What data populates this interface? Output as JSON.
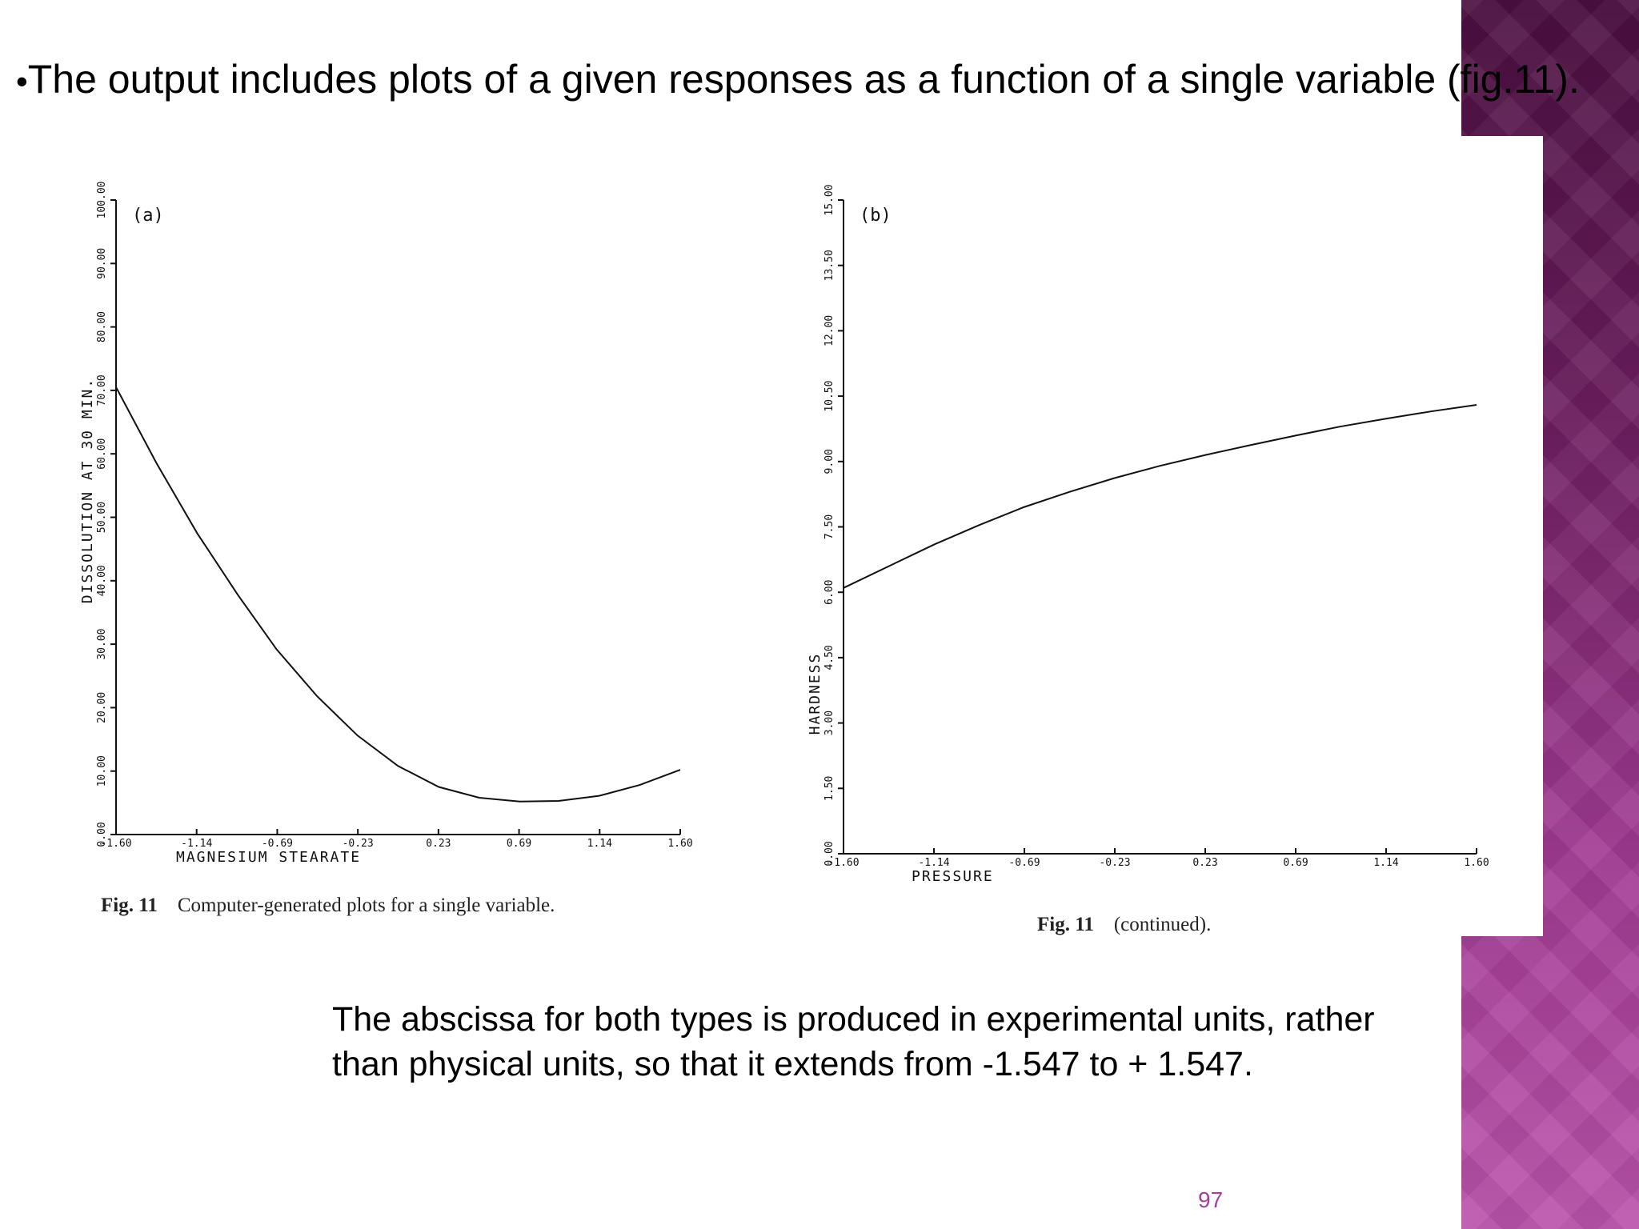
{
  "slide": {
    "bullet": "•",
    "headline": "The output includes plots of a given responses as a function of a single variable (fig.11).",
    "note_line1": "The abscissa for both types is produced in experimental units, rather",
    "note_line2": "than physical units, so that it extends from -1.547 to + 1.547.",
    "page_number": "97",
    "accent_colors": {
      "sidebar_top": "#4a0f3f",
      "sidebar_bottom": "#bb54ab",
      "page_number": "#a0409a"
    }
  },
  "captions": {
    "a_label": "Fig. 11",
    "a_text": "Computer-generated plots for a single variable.",
    "b_label": "Fig. 11",
    "b_text": "(continued)."
  },
  "chart_data": [
    {
      "type": "line",
      "panel_label": "(a)",
      "xlabel": "MAGNESIUM STEARATE",
      "ylabel": "DISSOLUTION AT 30 MIN.",
      "xlim": [
        -1.6,
        1.6
      ],
      "ylim": [
        0,
        100
      ],
      "x_ticks": [
        "-1.60",
        "-1.14",
        "-0.69",
        "-0.23",
        "0.23",
        "0.69",
        "1.14",
        "1.60"
      ],
      "y_ticks": [
        "0.00",
        "10.00",
        "20.00",
        "30.00",
        "40.00",
        "50.00",
        "60.00",
        "70.00",
        "80.00",
        "90.00",
        "100.00"
      ],
      "series": [
        {
          "x": [
            -1.6,
            -1.37,
            -1.14,
            -0.91,
            -0.69,
            -0.46,
            -0.23,
            0.0,
            0.23,
            0.46,
            0.69,
            0.91,
            1.14,
            1.37,
            1.6
          ],
          "y": [
            70.5,
            58.5,
            47.5,
            37.8,
            29.2,
            21.8,
            15.6,
            10.8,
            7.5,
            5.8,
            5.2,
            5.3,
            6.1,
            7.8,
            10.2
          ]
        }
      ],
      "grid": false
    },
    {
      "type": "line",
      "panel_label": "(b)",
      "xlabel": "PRESSURE",
      "ylabel": "HARDNESS",
      "xlim": [
        -1.6,
        1.6
      ],
      "ylim": [
        0,
        15
      ],
      "x_ticks": [
        "-1.60",
        "-1.14",
        "-0.69",
        "-0.23",
        "0.23",
        "0.69",
        "1.14",
        "1.60"
      ],
      "y_ticks": [
        "0.00",
        "1.50",
        "3.00",
        "4.50",
        "6.00",
        "7.50",
        "9.00",
        "10.50",
        "12.00",
        "13.50",
        "15.00"
      ],
      "series": [
        {
          "x": [
            -1.6,
            -1.37,
            -1.14,
            -0.91,
            -0.69,
            -0.46,
            -0.23,
            0.0,
            0.23,
            0.46,
            0.69,
            0.91,
            1.14,
            1.37,
            1.6
          ],
          "y": [
            6.1,
            6.6,
            7.1,
            7.55,
            7.95,
            8.3,
            8.62,
            8.9,
            9.15,
            9.38,
            9.6,
            9.8,
            9.98,
            10.15,
            10.3
          ]
        }
      ],
      "grid": false
    }
  ]
}
